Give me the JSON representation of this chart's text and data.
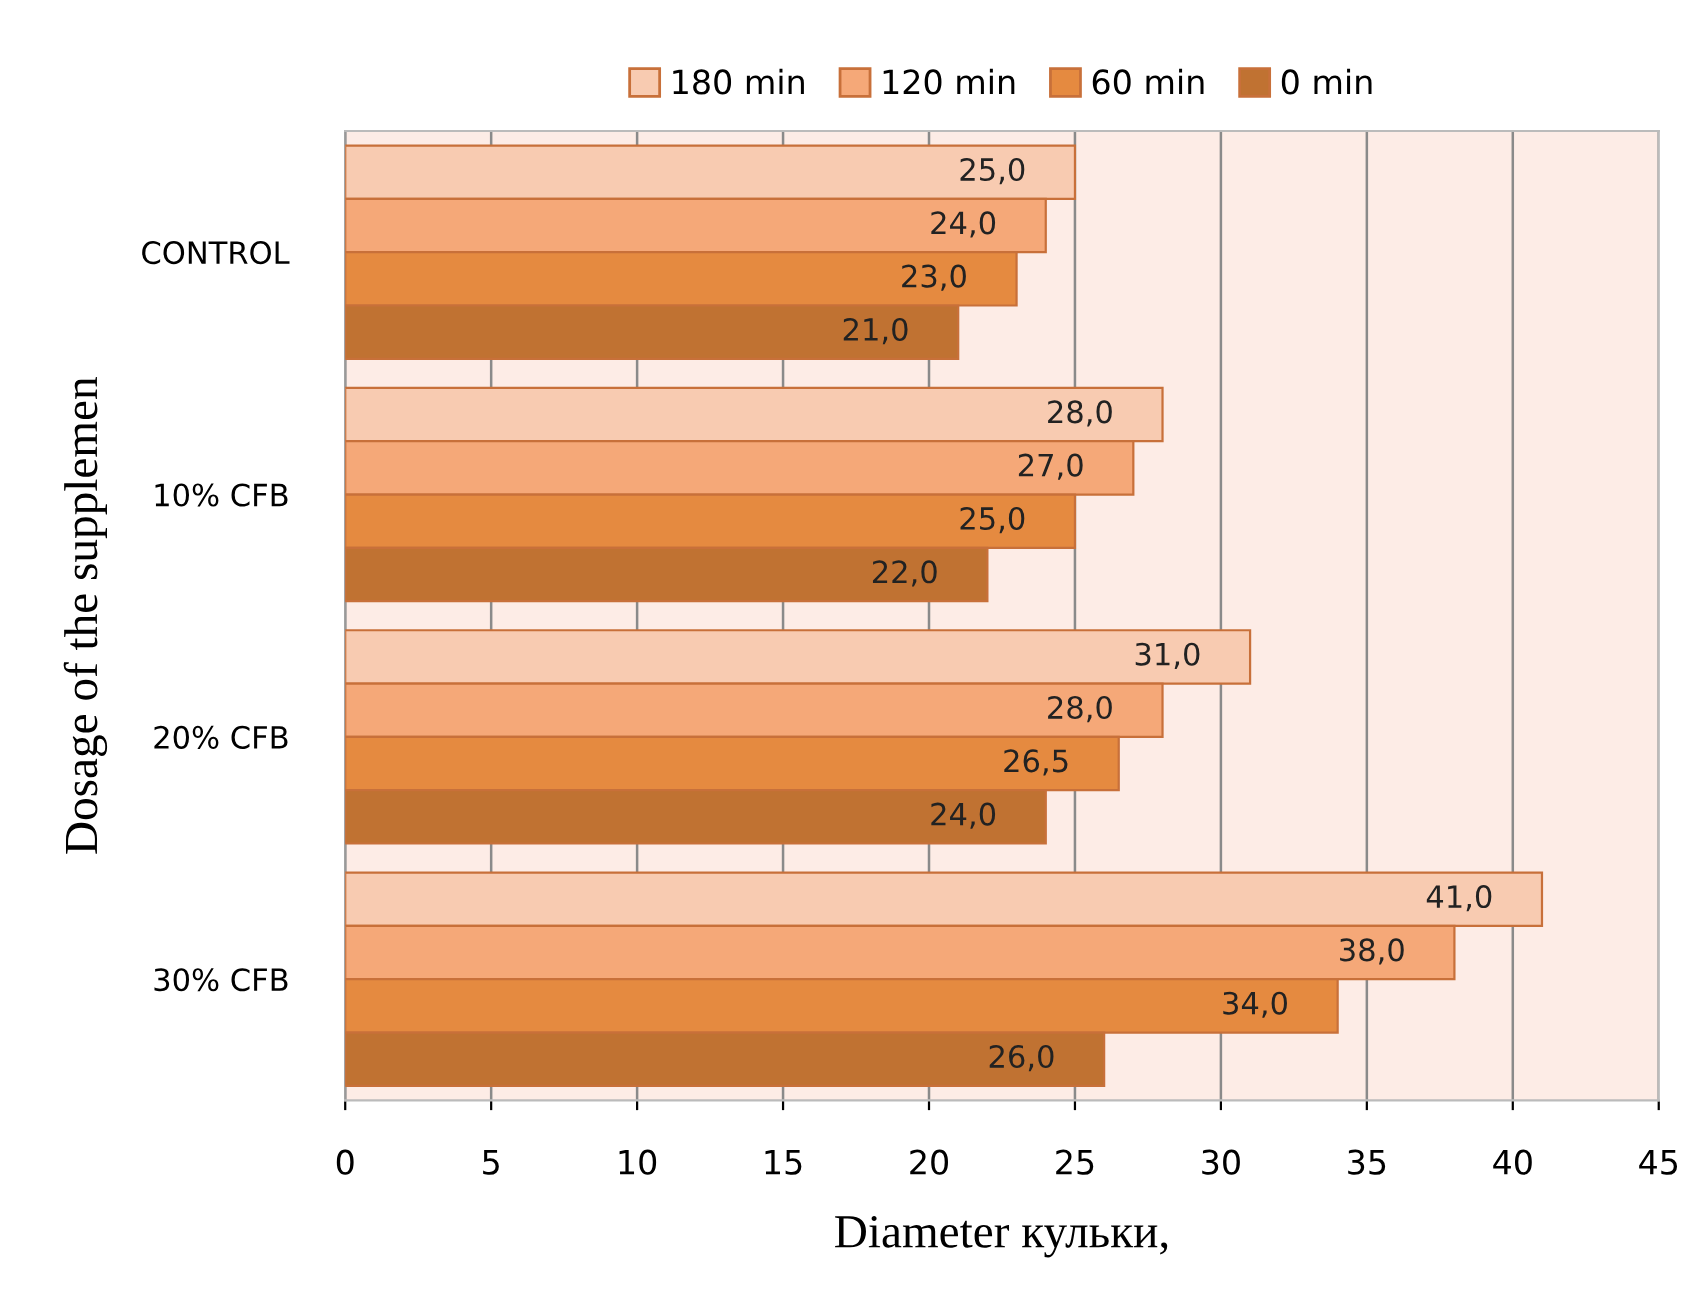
{
  "chart_data": {
    "type": "bar",
    "orientation": "horizontal",
    "xlabel": "Diameter кульки,",
    "ylabel": "Dosage of the supplemen",
    "categories": [
      "CONTROL",
      "10% CFB",
      "20% CFB",
      "30% CFB"
    ],
    "series": [
      {
        "name": "180 min",
        "color": "#f8cbb1",
        "values": [
          25.0,
          28.0,
          31.0,
          41.0
        ],
        "value_labels": [
          "25,0",
          "28,0",
          "31,0",
          "41,0"
        ]
      },
      {
        "name": "120 min",
        "color": "#f5a878",
        "values": [
          24.0,
          27.0,
          28.0,
          38.0
        ],
        "value_labels": [
          "24,0",
          "27,0",
          "28,0",
          "38,0"
        ]
      },
      {
        "name": "60 min",
        "color": "#e58a40",
        "values": [
          23.0,
          25.0,
          26.5,
          34.0
        ],
        "value_labels": [
          "23,0",
          "25,0",
          "26,5",
          "34,0"
        ]
      },
      {
        "name": "0 min",
        "color": "#c07232",
        "values": [
          21.0,
          22.0,
          24.0,
          26.0
        ],
        "value_labels": [
          "21,0",
          "22,0",
          "24,0",
          "26,0"
        ]
      }
    ],
    "xlim": [
      0,
      45
    ],
    "xticks": [
      0,
      5,
      10,
      15,
      20,
      25,
      30,
      35,
      40,
      45
    ],
    "grid": "x",
    "legend": "top"
  }
}
